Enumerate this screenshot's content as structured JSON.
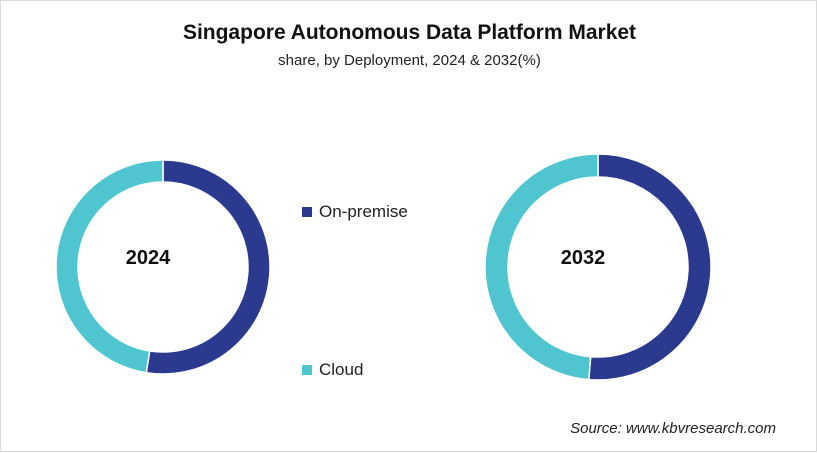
{
  "chart_data": {
    "type": "pie",
    "title": "Singapore Autonomous Data Platform Market",
    "subtitle": "share, by Deployment, 2024 & 2032(%)",
    "legend": {
      "placement": "center",
      "entries": [
        "On-premise",
        "Cloud"
      ]
    },
    "colors": {
      "On-premise": "#2b3a8f",
      "Cloud": "#4fc6cf"
    },
    "charts": [
      {
        "label": "2024",
        "values": {
          "On-premise": 52.5,
          "Cloud": 47.5
        }
      },
      {
        "label": "2032",
        "values": {
          "On-premise": 51.3,
          "Cloud": 48.7
        }
      }
    ]
  },
  "source": "Source: www.kbvresearch.com"
}
